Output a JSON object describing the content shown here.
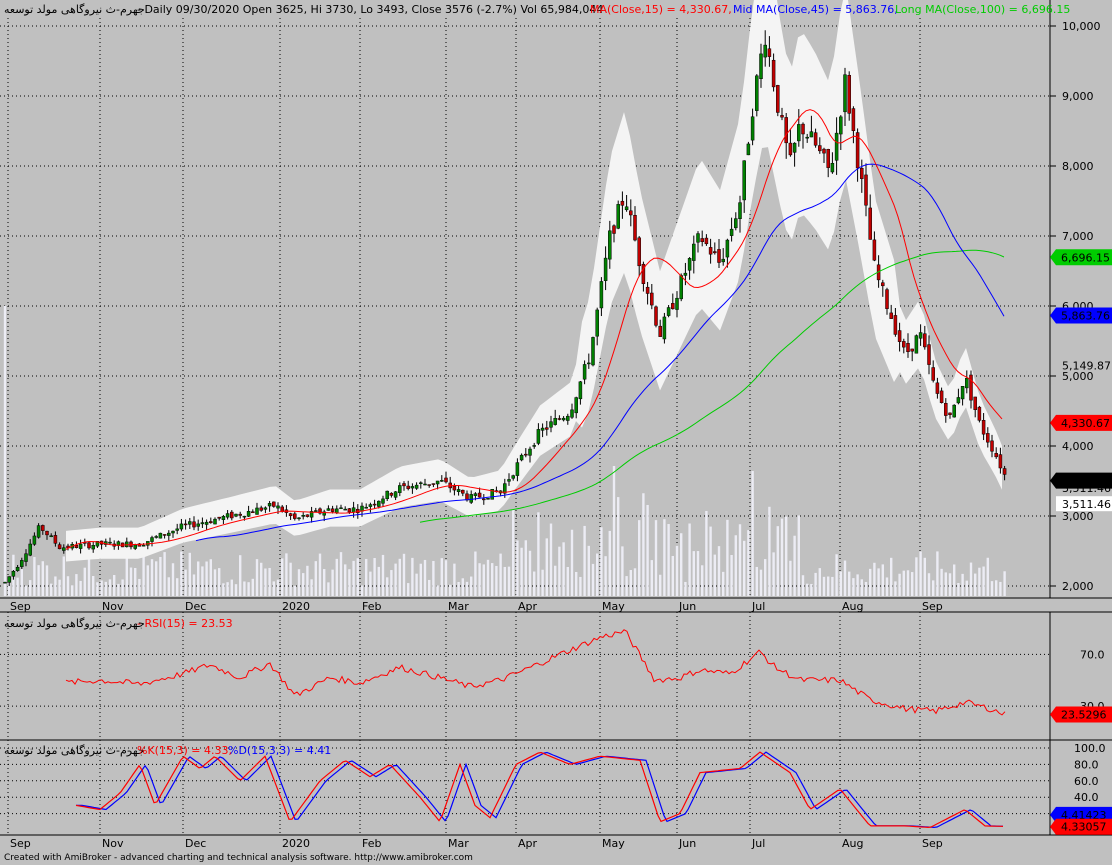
{
  "header": {
    "symbol": "جهرم-ث نیروگاهی مولد توسعه",
    "main": "- Daily 09/30/2020 Open 3625, Hi 3730, Lo 3493, Close 3576 (-2.7%) Vol 65,984,044",
    "ma15": "MA(Close,15) = 4,330.67,",
    "ma45": "Mid MA(Close,45) = 5,863.76,",
    "ma100": "Long MA(Close,100) = 6,696.15"
  },
  "rsi_header": {
    "symbol": "جهرم-ث نیروگاهی مولد توسعه",
    "label": "- RSI(15) = 23.53"
  },
  "stoch_header": {
    "symbol": "جهرم-ث نیروگاهی مولد توسعه",
    "prefix": "-",
    "k": "%K(15,3) = 4.33,",
    "d": "%D(15,3,3) = 4.41"
  },
  "footer": "Created with AmiBroker - advanced charting and technical analysis software. http://www.amibroker.com",
  "colors": {
    "bg": "#c0c0c0",
    "ma15": "#ff0000",
    "ma45": "#0000ff",
    "ma100": "#00cc00",
    "up": "#008000",
    "down": "#c00000",
    "band": "#f2f2f2",
    "volume": "#e8e8f0",
    "k": "#ff0000",
    "d": "#0000ff"
  },
  "price_axis": [
    "10,000",
    "9,000",
    "8,000",
    "7,000",
    "6,000",
    "5,149.87",
    "5,000",
    "4,000",
    "3,511.46",
    "3,000",
    "2,000"
  ],
  "price_badges": {
    "ma100": "6,696.15",
    "ma45": "5,863.76",
    "ma15": "4,330.67",
    "close": "3,576",
    "low1": "3,511.46",
    "low2": "3,511.46"
  },
  "rsi_axis": [
    "70.0",
    "30.0"
  ],
  "rsi_badge": "23.5296",
  "stoch_axis": [
    "100.0",
    "80.0",
    "60.0",
    "40.0",
    "20.0",
    "0.0"
  ],
  "stoch_badges": {
    "d": "4.41423",
    "k": "4.33057"
  },
  "months_top": [
    "Sep",
    "Nov",
    "Dec",
    "2020",
    "Feb",
    "Mar",
    "Apr",
    "May",
    "Jun",
    "Jul",
    "Aug",
    "Sep"
  ],
  "months_bottom": [
    "Sep",
    "Nov",
    "Dec",
    "2020",
    "Feb",
    "Mar",
    "Apr",
    "May",
    "Jun",
    "Jul",
    "Aug",
    "Sep"
  ],
  "chart_data": {
    "type": "line",
    "series": [
      {
        "name": "MA(Close,15)",
        "last": 4330.67
      },
      {
        "name": "Mid MA(Close,45)",
        "last": 5863.76
      },
      {
        "name": "Long MA(Close,100)",
        "last": 6696.15
      },
      {
        "name": "RSI(15)",
        "last": 23.53
      },
      {
        "name": "%K(15,3)",
        "last": 4.33
      },
      {
        "name": "%D(15,3,3)",
        "last": 4.41
      }
    ],
    "ohlc_last": {
      "date": "09/30/2020",
      "open": 3625,
      "high": 3730,
      "low": 3493,
      "close": 3576,
      "change_pct": -2.7,
      "volume": 65984044
    },
    "price_range": [
      2000,
      10000
    ],
    "key_price_points": [
      {
        "month": "Sep",
        "value": 2500
      },
      {
        "month": "Nov",
        "value": 2650
      },
      {
        "month": "Dec",
        "value": 2900
      },
      {
        "month": "2020",
        "value": 3150
      },
      {
        "month": "Feb",
        "value": 3300
      },
      {
        "month": "Mar",
        "value": 3550
      },
      {
        "month": "Apr",
        "value": 4100
      },
      {
        "month": "May",
        "value": 7400
      },
      {
        "month": "Jun",
        "value": 6800
      },
      {
        "month": "Jul",
        "value": 9800
      },
      {
        "month": "Aug",
        "value": 8300
      },
      {
        "month": "Sep",
        "value": 4500
      },
      {
        "month": "end",
        "value": 3576
      }
    ]
  }
}
